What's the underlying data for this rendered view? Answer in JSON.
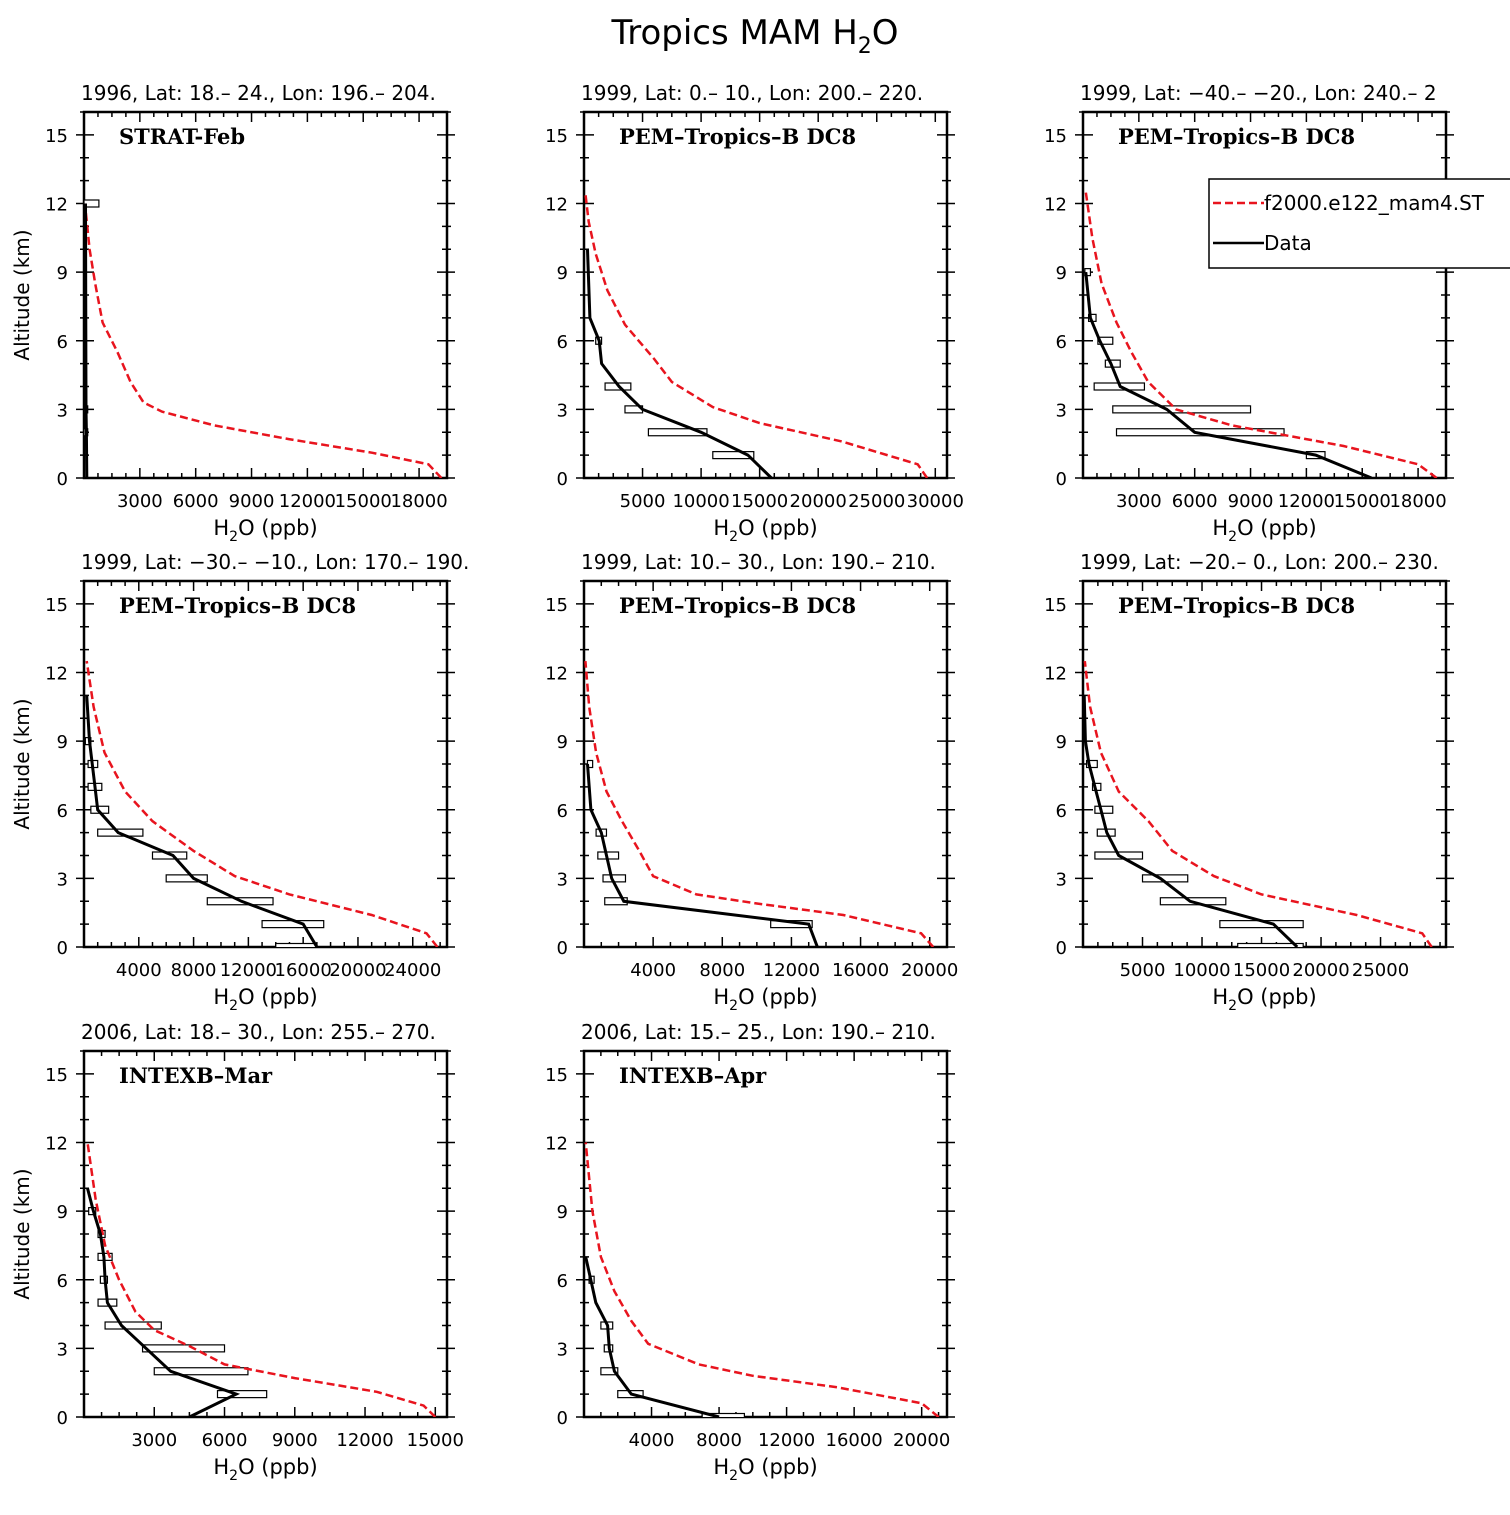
{
  "figure": {
    "title": "Tropics MAM H2O",
    "title_main": "Tropics MAM H",
    "title_sub": "2",
    "title_tail": "O",
    "xlabel_main": "H",
    "xlabel_sub": "2",
    "xlabel_tail": "O (ppb)",
    "ylabel": "Altitude (km)",
    "legend": {
      "model_label": "f2000.e122_mam4.ST",
      "data_label": "Data",
      "model_color": "#e8141e",
      "data_color": "#000000"
    }
  },
  "chart_data": [
    {
      "type": "line",
      "header": "1996, Lat: 18.– 24., Lon: 196.– 204.",
      "campaign": "STRAT-Feb",
      "xlim": [
        0,
        19500
      ],
      "xticks": [
        3000,
        6000,
        9000,
        12000,
        15000,
        18000
      ],
      "xtick_labels": [
        "3000",
        "6000",
        "9000",
        "12000",
        "15000",
        "18000"
      ],
      "ylim": [
        0,
        16
      ],
      "yticks": [
        0,
        3,
        6,
        9,
        12,
        15
      ],
      "model": {
        "x": [
          19200,
          18500,
          15500,
          11000,
          7000,
          4200,
          3200,
          2500,
          1800,
          1000,
          600,
          300,
          150,
          50
        ],
        "y": [
          0,
          0.6,
          1.1,
          1.7,
          2.3,
          2.9,
          3.3,
          4.2,
          5.5,
          6.8,
          8.5,
          10,
          11.2,
          12
        ]
      },
      "data": {
        "x": [
          150,
          130,
          110,
          80
        ],
        "y": [
          0,
          2,
          3,
          12
        ]
      },
      "bars": [
        {
          "y": 12,
          "min": 0,
          "max": 800
        },
        {
          "y": 2,
          "min": 0,
          "max": 200
        },
        {
          "y": 3,
          "min": 0,
          "max": 200
        }
      ]
    },
    {
      "type": "line",
      "header": "1999, Lat: 0.– 10., Lon: 200.– 220.",
      "campaign": "PEM–Tropics–B DC8",
      "xlim": [
        0,
        31000
      ],
      "xticks": [
        5000,
        10000,
        15000,
        20000,
        25000,
        30000
      ],
      "xtick_labels": [
        "5000",
        "10000",
        "15000",
        "20000",
        "25000",
        "30000"
      ],
      "ylim": [
        0,
        16
      ],
      "yticks": [
        0,
        3,
        6,
        9,
        12,
        15
      ],
      "model": {
        "x": [
          29300,
          28500,
          22000,
          15000,
          11000,
          7500,
          6000,
          3500,
          2000,
          1000,
          400,
          100
        ],
        "y": [
          0,
          0.6,
          1.6,
          2.4,
          3.1,
          4.2,
          5.2,
          6.7,
          8.2,
          9.8,
          11.2,
          12.5
        ]
      },
      "data": {
        "x": [
          16000,
          14000,
          10000,
          5000,
          3000,
          1500,
          1300,
          500,
          300
        ],
        "y": [
          0,
          1,
          2,
          3,
          4,
          5,
          6,
          7,
          10
        ]
      },
      "bars": [
        {
          "y": 1,
          "min": 11000,
          "max": 14500
        },
        {
          "y": 2,
          "min": 5500,
          "max": 10500
        },
        {
          "y": 3,
          "min": 3500,
          "max": 5000
        },
        {
          "y": 4,
          "min": 1800,
          "max": 4000
        },
        {
          "y": 6,
          "min": 1000,
          "max": 1500
        }
      ]
    },
    {
      "type": "line",
      "header": "1999, Lat: −40.– −20., Lon: 240.– 2",
      "campaign": "PEM–Tropics–B DC8",
      "xlim": [
        0,
        19500
      ],
      "xticks": [
        3000,
        6000,
        9000,
        12000,
        15000,
        18000
      ],
      "xtick_labels": [
        "3000",
        "6000",
        "9000",
        "12000",
        "15000",
        "18000"
      ],
      "ylim": [
        0,
        16
      ],
      "yticks": [
        0,
        3,
        6,
        9,
        12,
        15
      ],
      "model": {
        "x": [
          19000,
          18000,
          14000,
          8000,
          5000,
          3500,
          2600,
          1800,
          1000,
          500,
          150
        ],
        "y": [
          0,
          0.6,
          1.4,
          2.3,
          3.0,
          4.2,
          5.5,
          6.8,
          8.5,
          10.5,
          12.5
        ]
      },
      "data": {
        "x": [
          15500,
          12500,
          6000,
          4500,
          2000,
          1500,
          900,
          400,
          150
        ],
        "y": [
          0,
          1,
          2,
          3,
          4,
          5,
          6,
          7,
          9
        ]
      },
      "bars": [
        {
          "y": 1,
          "min": 12000,
          "max": 13000
        },
        {
          "y": 2,
          "min": 1800,
          "max": 10800
        },
        {
          "y": 3,
          "min": 1600,
          "max": 9000
        },
        {
          "y": 4,
          "min": 600,
          "max": 3300
        },
        {
          "y": 5,
          "min": 1200,
          "max": 2000
        },
        {
          "y": 6,
          "min": 800,
          "max": 1600
        },
        {
          "y": 7,
          "min": 300,
          "max": 700
        },
        {
          "y": 9,
          "min": 100,
          "max": 400
        }
      ]
    },
    {
      "type": "line",
      "header": "1999, Lat: −30.– −10., Lon: 170.– 190.",
      "campaign": "PEM–Tropics–B DC8",
      "xlim": [
        0,
        26500
      ],
      "xticks": [
        4000,
        8000,
        12000,
        16000,
        20000,
        24000
      ],
      "xtick_labels": [
        "4000",
        "8000",
        "12000",
        "16000",
        "20000",
        "24000"
      ],
      "ylim": [
        0,
        16
      ],
      "yticks": [
        0,
        3,
        6,
        9,
        12,
        15
      ],
      "model": {
        "x": [
          25800,
          25000,
          21000,
          15000,
          11000,
          8000,
          5000,
          3000,
          1500,
          700,
          200
        ],
        "y": [
          0,
          0.6,
          1.4,
          2.3,
          3.1,
          4.2,
          5.5,
          6.8,
          8.5,
          10.5,
          12.5
        ]
      },
      "data": {
        "x": [
          17000,
          16000,
          11500,
          8000,
          6500,
          2500,
          1000,
          800,
          400,
          200
        ],
        "y": [
          0,
          1,
          2,
          3,
          4,
          5,
          6,
          7,
          9,
          11
        ]
      },
      "bars": [
        {
          "y": 0,
          "min": 14000,
          "max": 17000
        },
        {
          "y": 1,
          "min": 13000,
          "max": 17500
        },
        {
          "y": 2,
          "min": 9000,
          "max": 13800
        },
        {
          "y": 3,
          "min": 6000,
          "max": 9000
        },
        {
          "y": 4,
          "min": 5000,
          "max": 7500
        },
        {
          "y": 5,
          "min": 1000,
          "max": 4300
        },
        {
          "y": 6,
          "min": 500,
          "max": 1800
        },
        {
          "y": 7,
          "min": 300,
          "max": 1300
        },
        {
          "y": 8,
          "min": 300,
          "max": 1000
        },
        {
          "y": 9,
          "min": 100,
          "max": 500
        }
      ]
    },
    {
      "type": "line",
      "header": "1999, Lat: 10.– 30., Lon: 190.– 210.",
      "campaign": "PEM–Tropics–B DC8",
      "xlim": [
        0,
        21000
      ],
      "xticks": [
        4000,
        8000,
        12000,
        16000,
        20000
      ],
      "xtick_labels": [
        "4000",
        "8000",
        "12000",
        "16000",
        "20000"
      ],
      "ylim": [
        0,
        16
      ],
      "yticks": [
        0,
        3,
        6,
        9,
        12,
        15
      ],
      "model": {
        "x": [
          20200,
          19500,
          15000,
          10000,
          6500,
          4000,
          3200,
          2200,
          1300,
          700,
          300,
          80
        ],
        "y": [
          0,
          0.6,
          1.4,
          1.9,
          2.3,
          3.1,
          4.2,
          5.5,
          6.8,
          8.5,
          10.5,
          12.5
        ]
      },
      "data": {
        "x": [
          13500,
          13000,
          2300,
          1600,
          1300,
          1000,
          400,
          300,
          200
        ],
        "y": [
          0,
          1,
          2,
          3,
          4,
          5,
          6,
          7,
          8
        ]
      },
      "bars": [
        {
          "y": 1,
          "min": 10800,
          "max": 13200
        },
        {
          "y": 2,
          "min": 1200,
          "max": 2500
        },
        {
          "y": 3,
          "min": 1100,
          "max": 2400
        },
        {
          "y": 4,
          "min": 800,
          "max": 2000
        },
        {
          "y": 5,
          "min": 700,
          "max": 1300
        },
        {
          "y": 8,
          "min": 200,
          "max": 500
        }
      ]
    },
    {
      "type": "line",
      "header": "1999, Lat: −20.– 0., Lon: 200.– 230.",
      "campaign": "PEM–Tropics–B DC8",
      "xlim": [
        0,
        30500
      ],
      "xticks": [
        5000,
        10000,
        15000,
        20000,
        25000
      ],
      "xtick_labels": [
        "5000",
        "10000",
        "15000",
        "20000",
        "25000"
      ],
      "ylim": [
        0,
        16
      ],
      "yticks": [
        0,
        3,
        6,
        9,
        12,
        15
      ],
      "model": {
        "x": [
          29300,
          28500,
          23000,
          15000,
          11000,
          7500,
          5500,
          3000,
          1500,
          600,
          150
        ],
        "y": [
          0,
          0.6,
          1.4,
          2.3,
          3.1,
          4.2,
          5.5,
          6.8,
          8.5,
          10.5,
          12.5
        ]
      },
      "data": {
        "x": [
          18000,
          16000,
          9000,
          6500,
          3000,
          2000,
          1500,
          1000,
          500,
          200,
          100
        ],
        "y": [
          0,
          1,
          2,
          3,
          4,
          5,
          6,
          7,
          8,
          9,
          11
        ]
      },
      "bars": [
        {
          "y": 0,
          "min": 13000,
          "max": 18500
        },
        {
          "y": 1,
          "min": 11500,
          "max": 18500
        },
        {
          "y": 2,
          "min": 6500,
          "max": 12000
        },
        {
          "y": 3,
          "min": 5000,
          "max": 8800
        },
        {
          "y": 4,
          "min": 1000,
          "max": 5000
        },
        {
          "y": 5,
          "min": 1200,
          "max": 2700
        },
        {
          "y": 6,
          "min": 1000,
          "max": 2500
        },
        {
          "y": 7,
          "min": 800,
          "max": 1500
        },
        {
          "y": 8,
          "min": 300,
          "max": 1200
        }
      ]
    },
    {
      "type": "line",
      "header": "2006, Lat: 18.– 30., Lon: 255.– 270.",
      "campaign": "INTEXB–Mar",
      "xlim": [
        0,
        15500
      ],
      "xticks": [
        3000,
        6000,
        9000,
        12000,
        15000
      ],
      "xtick_labels": [
        "3000",
        "6000",
        "9000",
        "12000",
        "15000"
      ],
      "ylim": [
        0,
        16
      ],
      "yticks": [
        0,
        3,
        6,
        9,
        12,
        15
      ],
      "model": {
        "x": [
          15000,
          14500,
          12500,
          9000,
          6000,
          4500,
          3000,
          2200,
          1500,
          900,
          500,
          150
        ],
        "y": [
          0,
          0.5,
          1.1,
          1.7,
          2.3,
          3.1,
          3.8,
          4.6,
          6.0,
          7.5,
          9.5,
          12
        ]
      },
      "data": {
        "x": [
          4500,
          6500,
          3700,
          1600,
          1000,
          900,
          850,
          700,
          400,
          150
        ],
        "y": [
          0,
          1,
          2,
          4,
          5,
          6,
          7,
          8,
          9,
          10
        ]
      },
      "bars": [
        {
          "y": 1,
          "min": 5700,
          "max": 7800
        },
        {
          "y": 2,
          "min": 3000,
          "max": 7000
        },
        {
          "y": 3,
          "min": 2500,
          "max": 6000
        },
        {
          "y": 4,
          "min": 900,
          "max": 3300
        },
        {
          "y": 5,
          "min": 600,
          "max": 1400
        },
        {
          "y": 6,
          "min": 700,
          "max": 1000
        },
        {
          "y": 7,
          "min": 600,
          "max": 1200
        },
        {
          "y": 8,
          "min": 600,
          "max": 900
        },
        {
          "y": 9,
          "min": 200,
          "max": 500
        }
      ]
    },
    {
      "type": "line",
      "header": "2006, Lat: 15.– 25., Lon: 190.– 210.",
      "campaign": "INTEXB–Apr",
      "xlim": [
        0,
        21500
      ],
      "xticks": [
        4000,
        8000,
        12000,
        16000,
        20000
      ],
      "xtick_labels": [
        "4000",
        "8000",
        "12000",
        "16000",
        "20000"
      ],
      "ylim": [
        0,
        16
      ],
      "yticks": [
        0,
        3,
        6,
        9,
        12,
        15
      ],
      "model": {
        "x": [
          21000,
          20000,
          15000,
          10000,
          6800,
          3800,
          2800,
          1800,
          1000,
          500,
          100
        ],
        "y": [
          0,
          0.6,
          1.3,
          1.8,
          2.3,
          3.2,
          4.2,
          5.5,
          7.0,
          9.0,
          12
        ]
      },
      "data": {
        "x": [
          8000,
          2800,
          1800,
          1500,
          1400,
          700,
          400,
          100
        ],
        "y": [
          0,
          1,
          2,
          3,
          4,
          5,
          6,
          7
        ]
      },
      "bars": [
        {
          "y": 0,
          "min": 7000,
          "max": 9500
        },
        {
          "y": 1,
          "min": 2000,
          "max": 3500
        },
        {
          "y": 2,
          "min": 1000,
          "max": 2000
        },
        {
          "y": 3,
          "min": 1200,
          "max": 1700
        },
        {
          "y": 4,
          "min": 1000,
          "max": 1700
        },
        {
          "y": 6,
          "min": 300,
          "max": 600
        }
      ]
    }
  ]
}
